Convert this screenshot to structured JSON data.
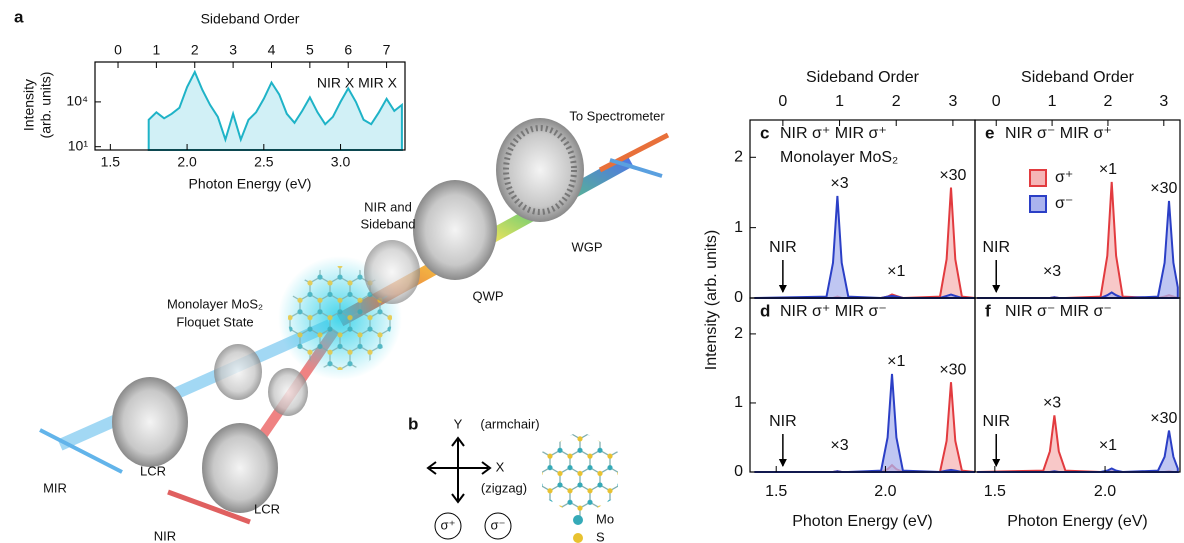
{
  "chart_data": [
    {
      "type": "area",
      "log_y": true,
      "x2label": "Sideband Order",
      "xlabel": "Photon Energy (eV)",
      "ylabel": [
        "Intensity",
        "(arb. units)"
      ],
      "annotation": "NIR X MIR X",
      "xlim": [
        1.4,
        3.42
      ],
      "xticks": [
        1.5,
        {
          "value": 2,
          "label": "2.0"
        },
        2.5,
        {
          "value": 3,
          "label": "3.0"
        }
      ],
      "x2lim": [
        -0.6,
        7.48
      ],
      "x2ticks": [
        0,
        1,
        2,
        3,
        4,
        5,
        6,
        7
      ],
      "ylim": [
        6,
        4700000
      ],
      "yticks": [
        {
          "value": 10,
          "label": "10¹"
        },
        {
          "value": 10000,
          "label": "10⁴"
        }
      ],
      "x": [
        1.75,
        1.8,
        1.85,
        1.9,
        1.95,
        2.0,
        2.05,
        2.1,
        2.15,
        2.2,
        2.25,
        2.3,
        2.35,
        2.4,
        2.45,
        2.5,
        2.55,
        2.6,
        2.65,
        2.7,
        2.75,
        2.8,
        2.85,
        2.9,
        2.95,
        3.0,
        3.05,
        3.1,
        3.15,
        3.2,
        3.25,
        3.3,
        3.35,
        3.4
      ],
      "series": [
        {
          "color": "#1fb3c7",
          "fill": "#c2ebf3",
          "values": [
            630,
            2000,
            800,
            1600,
            4000,
            100000,
            1000000,
            63000,
            6300,
            1000,
            30,
            1600,
            30,
            630,
            2000,
            16000,
            200000,
            32000,
            1600,
            400,
            2500,
            20000,
            2000,
            320,
            1000,
            10000,
            80000,
            10000,
            630,
            320,
            2000,
            16000,
            2500,
            6300
          ]
        }
      ]
    },
    {
      "type": "area",
      "label": "c",
      "title": "NIR σ⁺ MIR σ⁺",
      "subtitle": "Monolayer MoS₂",
      "x2label": "Sideband Order",
      "ylabel": "Intensity (arb. units)",
      "xlim": [
        1.38,
        2.41
      ],
      "x2lim": [
        -0.58,
        3.39
      ],
      "x2ticks": [
        0,
        1,
        2,
        3
      ],
      "ylim": [
        0,
        2.53
      ],
      "yticks": [
        0,
        1,
        2
      ],
      "x": [
        1.4,
        1.73,
        1.76,
        1.78,
        1.8,
        1.83,
        1.98,
        2.01,
        2.03,
        2.05,
        2.08,
        2.25,
        2.28,
        2.3,
        2.32,
        2.35,
        2.41
      ],
      "series": [
        {
          "name": "σ⁺",
          "color": "#e23b3f",
          "fill": "#f5b5b6",
          "values": [
            0,
            0,
            0,
            0.02,
            0,
            0,
            0,
            0.02,
            0.05,
            0.03,
            0,
            0.02,
            0.55,
            1.57,
            0.55,
            0.02,
            0
          ]
        },
        {
          "name": "σ⁻",
          "color": "#2b3fc6",
          "fill": "#aab3ee",
          "values": [
            0,
            0.02,
            0.5,
            1.45,
            0.5,
            0.02,
            0,
            0.02,
            0.03,
            0.02,
            0,
            0,
            0.03,
            0.05,
            0.03,
            0,
            0
          ]
        }
      ],
      "annotations": [
        {
          "order": 0,
          "text": "NIR",
          "arrow": true
        },
        {
          "order": 1,
          "text": "×3"
        },
        {
          "order": 2,
          "text": "×1"
        },
        {
          "order": 3,
          "text": "×30"
        }
      ]
    },
    {
      "type": "area",
      "label": "d",
      "title": "NIR σ⁺ MIR σ⁻",
      "xlabel": "Photon Energy (eV)",
      "xlim": [
        1.38,
        2.41
      ],
      "x2lim": [
        -0.58,
        3.39
      ],
      "xticks": [
        1.5,
        {
          "value": 2,
          "label": "2.0"
        }
      ],
      "ylim": [
        0,
        2.52
      ],
      "yticks": [
        0,
        1,
        2
      ],
      "x": [
        1.4,
        1.73,
        1.76,
        1.78,
        1.8,
        1.83,
        1.98,
        2.01,
        2.03,
        2.05,
        2.08,
        2.25,
        2.28,
        2.3,
        2.32,
        2.35,
        2.41
      ],
      "series": [
        {
          "name": "σ⁺",
          "color": "#e23b3f",
          "fill": "#f5b5b6",
          "values": [
            0,
            0,
            0,
            0.01,
            0,
            0,
            0,
            0.04,
            0.1,
            0.04,
            0,
            0,
            0.45,
            1.3,
            0.45,
            0.02,
            0
          ]
        },
        {
          "name": "σ⁻",
          "color": "#2b3fc6",
          "fill": "#aab3ee",
          "values": [
            0,
            0,
            0,
            0.01,
            0,
            0,
            0.02,
            0.5,
            1.42,
            0.5,
            0.02,
            0,
            0.02,
            0.03,
            0.02,
            0,
            0
          ]
        }
      ],
      "annotations": [
        {
          "order": 0,
          "text": "NIR",
          "arrow": true
        },
        {
          "order": 1,
          "text": "×3"
        },
        {
          "order": 2,
          "text": "×1"
        },
        {
          "order": 3,
          "text": "×30"
        }
      ]
    },
    {
      "type": "area",
      "label": "e",
      "title": "NIR σ⁻ MIR σ⁺",
      "x2label": "Sideband Order",
      "legend": true,
      "xlim": [
        1.41,
        2.34
      ],
      "x2lim": [
        -0.38,
        3.29
      ],
      "x2ticks": [
        0,
        1,
        2,
        3
      ],
      "ylim": [
        0,
        2.53
      ],
      "x": [
        1.42,
        1.72,
        1.75,
        1.77,
        1.79,
        1.82,
        1.98,
        2.01,
        2.03,
        2.05,
        2.08,
        2.24,
        2.27,
        2.29,
        2.31,
        2.33
      ],
      "series": [
        {
          "name": "σ⁺",
          "color": "#e23b3f",
          "fill": "#f5b5b6",
          "values": [
            0,
            0,
            0,
            0.01,
            0,
            0,
            0.02,
            0.6,
            1.65,
            0.6,
            0.02,
            0,
            0.02,
            0.04,
            0.02,
            0
          ]
        },
        {
          "name": "σ⁻",
          "color": "#2b3fc6",
          "fill": "#aab3ee",
          "values": [
            0,
            0,
            0,
            0.01,
            0,
            0,
            0,
            0.04,
            0.08,
            0.04,
            0,
            0.02,
            0.5,
            1.38,
            0.5,
            0.15
          ]
        }
      ],
      "annotations": [
        {
          "order": 0,
          "text": "NIR",
          "arrow": true
        },
        {
          "order": 1,
          "text": "×3"
        },
        {
          "order": 2,
          "text": "×1"
        },
        {
          "order": 3,
          "text": "×30"
        }
      ]
    },
    {
      "type": "area",
      "label": "f",
      "title": "NIR σ⁻ MIR σ⁻",
      "xlabel": "Photon Energy (eV)",
      "xlim": [
        1.41,
        2.34
      ],
      "x2lim": [
        -0.38,
        3.29
      ],
      "xticks": [
        1.5,
        {
          "value": 2,
          "label": "2.0"
        }
      ],
      "ylim": [
        0,
        2.52
      ],
      "x": [
        1.42,
        1.72,
        1.75,
        1.77,
        1.79,
        1.82,
        1.98,
        2.01,
        2.03,
        2.05,
        2.08,
        2.24,
        2.27,
        2.29,
        2.31,
        2.33
      ],
      "series": [
        {
          "name": "σ⁺",
          "color": "#e23b3f",
          "fill": "#f5b5b6",
          "values": [
            0,
            0.02,
            0.3,
            0.82,
            0.3,
            0.02,
            0,
            0,
            0.01,
            0,
            0,
            0,
            0,
            0.01,
            0,
            0
          ]
        },
        {
          "name": "σ⁻",
          "color": "#2b3fc6",
          "fill": "#aab3ee",
          "values": [
            0,
            0,
            0,
            0.01,
            0,
            0,
            0,
            0.02,
            0.05,
            0.02,
            0,
            0.02,
            0.22,
            0.6,
            0.22,
            0.05
          ]
        }
      ],
      "annotations": [
        {
          "order": 0,
          "text": "NIR",
          "arrow": true
        },
        {
          "order": 1,
          "text": "×3"
        },
        {
          "order": 2,
          "text": "×1"
        },
        {
          "order": 3,
          "text": "×30"
        }
      ]
    }
  ],
  "diagram": {
    "panel_a": "a",
    "panel_b": "b",
    "to_spectrometer": "To Spectrometer",
    "nir_sideband": [
      "NIR and",
      "Sideband"
    ],
    "wgp": "WGP",
    "qwp": "QWP",
    "sample": [
      "Monolayer MoS₂",
      "Floquet State"
    ],
    "lcr": [
      "LCR",
      "LCR"
    ],
    "mir": "MIR",
    "nir": "NIR",
    "y_axis": "Y",
    "armchair": "(armchair)",
    "x_axis": "X",
    "zigzag": "(zigzag)",
    "sigma_plus": "σ⁺",
    "sigma_minus": "σ⁻",
    "mo": "Mo",
    "s": "S"
  }
}
